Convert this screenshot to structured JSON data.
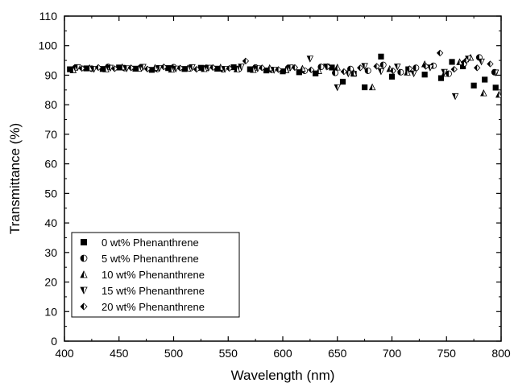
{
  "chart_data": {
    "type": "scatter",
    "title": "",
    "xlabel": "Wavelength (nm)",
    "ylabel": "Transmittance (%)",
    "xlim": [
      400,
      800
    ],
    "ylim": [
      0,
      110
    ],
    "xticks": [
      400,
      450,
      500,
      550,
      600,
      650,
      700,
      750,
      800
    ],
    "yticks": [
      0,
      10,
      20,
      30,
      40,
      50,
      60,
      70,
      80,
      90,
      100,
      110
    ],
    "grid": false,
    "legend_position": "bottom-left",
    "marker_color": "#000000",
    "series": [
      {
        "name": "0 wt% Phenanthrene",
        "marker": "square",
        "x": [
          405,
          420,
          435,
          450,
          465,
          480,
          495,
          510,
          525,
          540,
          555,
          570,
          585,
          600,
          615,
          630,
          645,
          655,
          665,
          675,
          690,
          700,
          715,
          730,
          745,
          755,
          765,
          775,
          785,
          795
        ],
        "y": [
          92.0,
          92.3,
          92.1,
          92.6,
          92.2,
          91.8,
          92.4,
          92.1,
          92.5,
          92.2,
          92.7,
          92.0,
          91.6,
          91.3,
          91.0,
          90.6,
          92.6,
          87.8,
          90.5,
          85.9,
          96.3,
          89.5,
          92.0,
          90.2,
          89.0,
          94.5,
          93.0,
          86.5,
          88.5,
          85.8
        ]
      },
      {
        "name": "5 wt% Phenanthrene",
        "marker": "half-circle",
        "x": [
          410,
          425,
          440,
          455,
          470,
          485,
          500,
          515,
          530,
          545,
          560,
          575,
          590,
          605,
          620,
          635,
          648,
          662,
          678,
          692,
          708,
          722,
          738,
          752,
          766,
          780,
          794
        ],
        "y": [
          92.5,
          92.2,
          92.8,
          92.4,
          92.6,
          92.1,
          92.7,
          92.3,
          92.5,
          92.0,
          92.2,
          92.6,
          91.8,
          92.4,
          91.5,
          92.8,
          90.8,
          92.1,
          91.5,
          93.5,
          91.0,
          92.5,
          93.2,
          90.5,
          94.0,
          96.0,
          91.0
        ]
      },
      {
        "name": "10 wt% Phenanthrene",
        "marker": "half-triangle-up",
        "x": [
          408,
          423,
          438,
          453,
          468,
          483,
          498,
          513,
          528,
          543,
          558,
          573,
          588,
          603,
          618,
          633,
          650,
          665,
          682,
          698,
          714,
          730,
          748,
          762,
          772,
          784,
          798
        ],
        "y": [
          91.8,
          92.5,
          92.1,
          92.8,
          92.3,
          92.6,
          92.0,
          92.4,
          92.2,
          92.7,
          92.1,
          91.9,
          92.5,
          91.8,
          92.3,
          91.5,
          92.7,
          90.8,
          86.0,
          92.2,
          91.0,
          93.8,
          90.6,
          94.5,
          96.0,
          84.0,
          83.5
        ]
      },
      {
        "name": "15 wt% Phenanthrene",
        "marker": "half-triangle-down",
        "x": [
          412,
          427,
          442,
          457,
          472,
          487,
          502,
          517,
          532,
          547,
          562,
          577,
          592,
          607,
          625,
          640,
          650,
          660,
          675,
          690,
          705,
          720,
          735,
          748,
          758,
          770,
          782,
          795
        ],
        "y": [
          92.6,
          92.0,
          92.4,
          92.2,
          92.7,
          92.3,
          92.1,
          92.6,
          92.4,
          92.0,
          92.8,
          92.2,
          91.7,
          92.5,
          95.5,
          92.8,
          85.8,
          90.5,
          93.0,
          91.2,
          92.8,
          90.5,
          92.5,
          91.0,
          82.8,
          95.5,
          94.5,
          90.8
        ]
      },
      {
        "name": "20 wt% Phenanthrene",
        "marker": "half-diamond",
        "x": [
          416,
          431,
          446,
          461,
          476,
          491,
          506,
          521,
          536,
          551,
          566,
          581,
          596,
          611,
          626,
          641,
          656,
          671,
          686,
          701,
          716,
          731,
          744,
          757,
          768,
          778,
          790
        ],
        "y": [
          92.3,
          92.6,
          92.2,
          92.5,
          92.1,
          92.8,
          92.4,
          92.0,
          92.6,
          92.3,
          94.8,
          92.5,
          91.9,
          92.6,
          91.8,
          92.9,
          91.2,
          92.5,
          93.0,
          91.5,
          92.2,
          93.0,
          97.5,
          92.0,
          95.0,
          92.5,
          93.8
        ]
      }
    ]
  }
}
